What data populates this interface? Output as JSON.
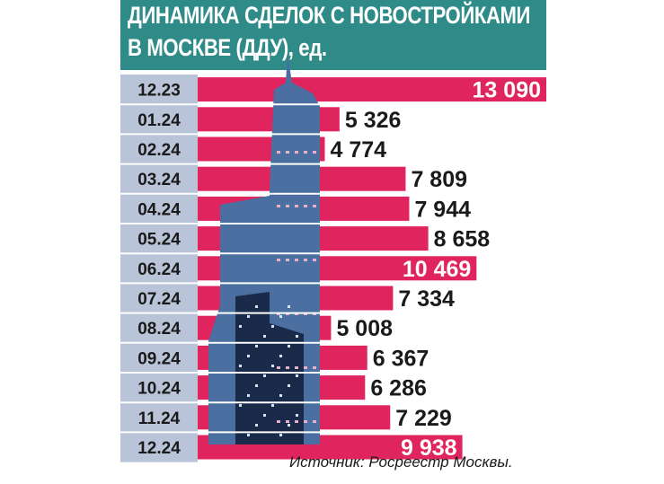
{
  "title": {
    "line1": "ДИНАМИКА СДЕЛОК С НОВОСТРОЙКАМИ",
    "line2": "В МОСКВЕ (ДДУ),",
    "unit": "ед."
  },
  "source": "Источник: Росреестр Москвы.",
  "colors": {
    "header": "#2e8b88",
    "bar": "#e0245e",
    "label_band": "#b9c4d8",
    "row_divider": "#ffffff",
    "value_on_bar": "#ffffff",
    "value_off_bar": "#1a1a1a",
    "building_dark": "#1a2a4a",
    "building_light": "#4a6fa0"
  },
  "chart_data": {
    "type": "bar",
    "orientation": "horizontal",
    "categories": [
      "12.23",
      "01.24",
      "02.24",
      "03.24",
      "04.24",
      "05.24",
      "06.24",
      "07.24",
      "08.24",
      "09.24",
      "10.24",
      "11.24",
      "12.24"
    ],
    "values": [
      13090,
      5326,
      4774,
      7809,
      7944,
      8658,
      10469,
      7334,
      5008,
      6367,
      6286,
      7229,
      9938
    ],
    "value_labels": [
      "13 090",
      "5 326",
      "4 774",
      "7 809",
      "7 944",
      "8 658",
      "10 469",
      "7 334",
      "5 008",
      "6 367",
      "6 286",
      "7 229",
      "9 938"
    ],
    "highlighted": [
      true,
      false,
      false,
      false,
      false,
      false,
      true,
      false,
      false,
      false,
      false,
      false,
      true
    ],
    "title": "ДИНАМИКА СДЕЛОК С НОВОСТРОЙКАМИ В МОСКВЕ (ДДУ), ед.",
    "xlabel": "",
    "ylabel": "",
    "grid": false,
    "legend": "none"
  }
}
